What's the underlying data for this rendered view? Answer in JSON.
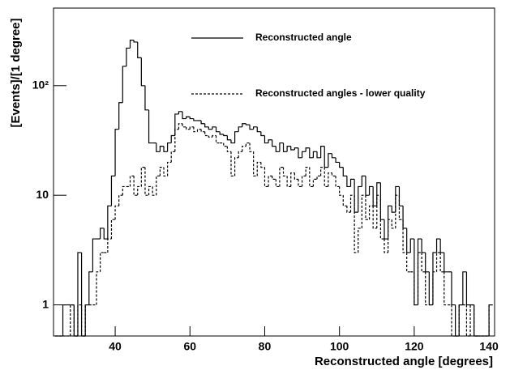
{
  "chart_data": {
    "type": "histogram",
    "xlabel": "Reconstructed angle [degrees]",
    "ylabel": "[Events]/[1 degree]",
    "bins": [
      24,
      25,
      26,
      27,
      28,
      29,
      30,
      31,
      32,
      33,
      34,
      35,
      36,
      37,
      38,
      39,
      40,
      41,
      42,
      43,
      44,
      45,
      46,
      47,
      48,
      49,
      50,
      51,
      52,
      53,
      54,
      55,
      56,
      57,
      58,
      59,
      60,
      61,
      62,
      63,
      64,
      65,
      66,
      67,
      68,
      69,
      70,
      71,
      72,
      73,
      74,
      75,
      76,
      77,
      78,
      79,
      80,
      81,
      82,
      83,
      84,
      85,
      86,
      87,
      88,
      89,
      90,
      91,
      92,
      93,
      94,
      95,
      96,
      97,
      98,
      99,
      100,
      101,
      102,
      103,
      104,
      105,
      106,
      107,
      108,
      109,
      110,
      111,
      112,
      113,
      114,
      115,
      116,
      117,
      118,
      119,
      120,
      121,
      122,
      123,
      124,
      125,
      126,
      127,
      128,
      129,
      130,
      131,
      132,
      133,
      134,
      135,
      136,
      137,
      138,
      139,
      140,
      141
    ],
    "series": [
      {
        "name": "Reconstructed angle",
        "color": "#000000",
        "linestyle": "solid",
        "values": [
          0,
          0,
          1,
          1,
          1,
          0,
          3,
          0,
          1,
          2,
          4,
          4,
          5,
          4,
          8,
          15,
          40,
          70,
          150,
          220,
          260,
          250,
          180,
          100,
          60,
          30,
          30,
          25,
          28,
          25,
          30,
          35,
          55,
          58,
          50,
          52,
          50,
          48,
          48,
          45,
          42,
          40,
          42,
          38,
          36,
          35,
          32,
          30,
          38,
          42,
          45,
          44,
          40,
          42,
          38,
          35,
          30,
          32,
          28,
          25,
          30,
          25,
          28,
          26,
          27,
          22,
          25,
          27,
          22,
          25,
          22,
          28,
          18,
          24,
          22,
          20,
          18,
          15,
          12,
          14,
          7,
          12,
          15,
          10,
          12,
          8,
          13,
          6,
          4,
          8,
          7,
          12,
          8,
          5,
          3,
          4,
          1,
          4,
          3,
          2,
          1,
          3,
          4,
          3,
          2,
          2,
          1,
          0,
          1,
          2,
          1,
          1,
          0,
          0,
          0,
          0,
          1
        ]
      },
      {
        "name": "Reconstructed angles - lower quality",
        "color": "#000000",
        "linestyle": "dashed",
        "values": [
          0,
          0,
          0,
          0,
          1,
          0,
          1,
          0,
          1,
          1,
          1,
          2,
          3,
          3,
          4,
          6,
          8,
          10,
          12,
          12,
          15,
          10,
          12,
          18,
          10,
          12,
          10,
          15,
          18,
          15,
          20,
          25,
          40,
          45,
          42,
          40,
          42,
          38,
          40,
          38,
          35,
          34,
          35,
          30,
          30,
          28,
          25,
          15,
          22,
          25,
          28,
          30,
          25,
          15,
          20,
          18,
          12,
          15,
          14,
          12,
          18,
          15,
          12,
          16,
          14,
          12,
          15,
          18,
          12,
          14,
          15,
          18,
          12,
          16,
          15,
          12,
          10,
          8,
          7,
          10,
          3,
          5,
          10,
          6,
          8,
          5,
          10,
          4,
          3,
          6,
          5,
          10,
          6,
          3,
          2,
          2,
          1,
          3,
          2,
          1,
          1,
          2,
          3,
          2,
          1,
          1,
          0,
          0,
          1,
          1,
          0,
          1,
          0,
          0,
          0,
          0,
          1
        ]
      }
    ],
    "xlim": [
      23.5,
      141.5
    ],
    "xticks": [
      40,
      60,
      80,
      100,
      120,
      140
    ],
    "ylim": [
      0.52,
      510
    ],
    "yscale": "log",
    "yticks": [
      1,
      10,
      {
        "value": 100,
        "label": "10²"
      }
    ]
  }
}
